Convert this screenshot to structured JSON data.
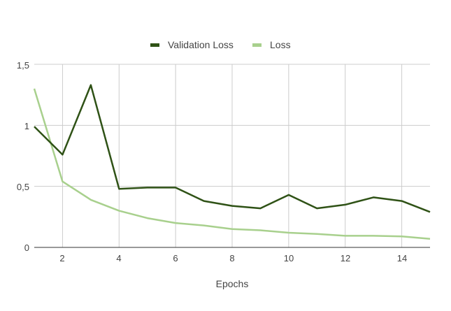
{
  "chart_data": {
    "type": "line",
    "title": "",
    "xlabel": "Epochs",
    "ylabel": "",
    "x": [
      1,
      2,
      3,
      4,
      5,
      6,
      7,
      8,
      9,
      10,
      11,
      12,
      13,
      14,
      15
    ],
    "xlim": [
      1,
      15
    ],
    "ylim": [
      0,
      1.5
    ],
    "x_ticks": [
      "2",
      "4",
      "6",
      "8",
      "10",
      "12",
      "14"
    ],
    "y_ticks": [
      "0",
      "0,5",
      "1",
      "1,5"
    ],
    "grid": true,
    "legend_position": "top",
    "series": [
      {
        "name": "Validation Loss",
        "color": "#2f5216",
        "values": [
          0.99,
          0.76,
          1.33,
          0.48,
          0.49,
          0.49,
          0.38,
          0.34,
          0.32,
          0.43,
          0.32,
          0.35,
          0.41,
          0.38,
          0.29
        ]
      },
      {
        "name": "Loss",
        "color": "#a8d08d",
        "values": [
          1.3,
          0.54,
          0.39,
          0.3,
          0.24,
          0.2,
          0.18,
          0.15,
          0.14,
          0.12,
          0.11,
          0.095,
          0.095,
          0.09,
          0.07
        ]
      }
    ]
  }
}
